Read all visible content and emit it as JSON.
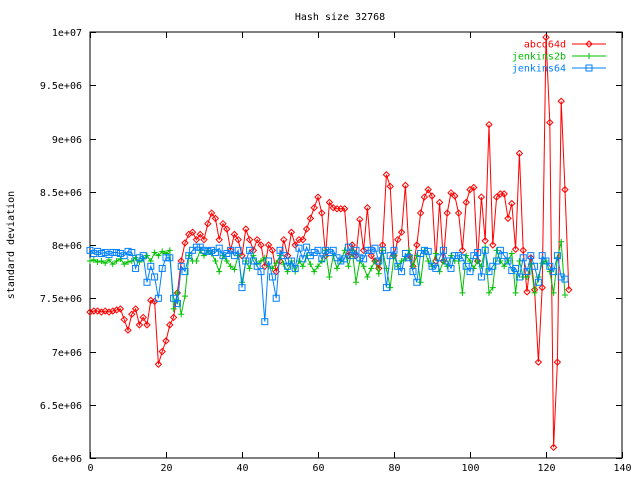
{
  "chart_data": {
    "type": "line",
    "title": "Hash size 32768",
    "xlabel": "",
    "ylabel": "standard deviation",
    "xlim": [
      0,
      140
    ],
    "ylim": [
      6000000,
      10000000
    ],
    "x_ticks": [
      0,
      20,
      40,
      60,
      80,
      100,
      120,
      140
    ],
    "x_tick_labels": [
      "0",
      "20",
      "40",
      "60",
      "80",
      "100",
      "120",
      "140"
    ],
    "y_ticks": [
      6000000,
      6500000,
      7000000,
      7500000,
      8000000,
      8500000,
      9000000,
      9500000,
      10000000
    ],
    "y_tick_labels": [
      "6e+06",
      "6.5e+06",
      "7e+06",
      "7.5e+06",
      "8e+06",
      "8.5e+06",
      "9e+06",
      "9.5e+06",
      "1e+07"
    ],
    "grid": false,
    "legend_position": "top-right",
    "series": [
      {
        "name": "abcd64d",
        "color": "#ff0000",
        "marker": "diamond",
        "values": [
          7370000,
          7380000,
          7380000,
          7370000,
          7380000,
          7370000,
          7380000,
          7390000,
          7400000,
          7300000,
          7200000,
          7350000,
          7400000,
          7250000,
          7320000,
          7250000,
          7480000,
          7470000,
          6880000,
          7000000,
          7100000,
          7250000,
          7320000,
          7550000,
          7850000,
          8020000,
          8100000,
          8120000,
          8050000,
          8100000,
          8050000,
          8200000,
          8300000,
          8250000,
          8050000,
          8200000,
          8150000,
          7950000,
          8100000,
          8050000,
          7900000,
          8150000,
          8050000,
          7950000,
          8050000,
          8000000,
          7800000,
          8000000,
          7950000,
          7750000,
          7850000,
          8050000,
          7900000,
          8120000,
          8000000,
          8050000,
          8050000,
          8150000,
          8250000,
          8350000,
          8450000,
          8300000,
          7900000,
          8400000,
          8350000,
          8340000,
          8340000,
          8340000,
          7900000,
          8000000,
          7900000,
          8240000,
          7950000,
          8350000,
          7900000,
          7850000,
          7780000,
          8000000,
          8660000,
          8550000,
          7900000,
          8050000,
          8120000,
          8560000,
          7900000,
          7800000,
          8000000,
          8300000,
          8450000,
          8520000,
          8460000,
          7850000,
          8400000,
          7850000,
          8300000,
          8490000,
          8460000,
          8300000,
          7950000,
          8400000,
          8520000,
          8540000,
          7850000,
          8450000,
          8040000,
          9130000,
          8000000,
          8450000,
          8480000,
          8480000,
          8250000,
          8390000,
          7960000,
          8860000,
          7950000,
          7560000,
          7880000,
          7580000,
          6900000,
          7600000,
          9950000,
          9150000,
          6100000,
          6900000,
          9350000,
          8520000,
          7580000
        ]
      },
      {
        "name": "jenkins2b",
        "color": "#00c000",
        "marker": "plus",
        "values": [
          7850000,
          7860000,
          7840000,
          7850000,
          7830000,
          7860000,
          7820000,
          7850000,
          7870000,
          7820000,
          7840000,
          7850000,
          7880000,
          7840000,
          7870000,
          7900000,
          7850000,
          7930000,
          7900000,
          7940000,
          7920000,
          7950000,
          7400000,
          7550000,
          7350000,
          7520000,
          7900000,
          7850000,
          7850000,
          7950000,
          7900000,
          7950000,
          7920000,
          7850000,
          7750000,
          7900000,
          7850000,
          7800000,
          7770000,
          7900000,
          7650000,
          7850000,
          7780000,
          7900000,
          7820000,
          7850000,
          7880000,
          7800000,
          7780000,
          7830000,
          7900000,
          7820000,
          7750000,
          7850000,
          7750000,
          7850000,
          7800000,
          7900000,
          7820000,
          7750000,
          7800000,
          7850000,
          7950000,
          7700000,
          7900000,
          7780000,
          7850000,
          7950000,
          7800000,
          7950000,
          7650000,
          7850000,
          7800000,
          7700000,
          7780000,
          7850000,
          7730000,
          7950000,
          7780000,
          7600000,
          7900000,
          7800000,
          7850000,
          7870000,
          7950000,
          7800000,
          7900000,
          7650000,
          7950000,
          7850000,
          7800000,
          7920000,
          7750000,
          7850000,
          7800000,
          7900000,
          7850000,
          7850000,
          7550000,
          7900000,
          7850000,
          7780000,
          7850000,
          7800000,
          7980000,
          7550000,
          7600000,
          7950000,
          7850000,
          7800000,
          7850000,
          7920000,
          7550000,
          7850000,
          7700000,
          7700000,
          7820000,
          7550000,
          7700000,
          7830000,
          7850000,
          7750000,
          7550000,
          7880000,
          8030000,
          7530000
        ]
      },
      {
        "name": "jenkins64",
        "color": "#0080ff",
        "marker": "square",
        "values": [
          7950000,
          7920000,
          7940000,
          7920000,
          7930000,
          7910000,
          7930000,
          7930000,
          7920000,
          7900000,
          7940000,
          7930000,
          7780000,
          7880000,
          7900000,
          7650000,
          7800000,
          7700000,
          7500000,
          7780000,
          7880000,
          7880000,
          7500000,
          7450000,
          7800000,
          7750000,
          7900000,
          7950000,
          7980000,
          7980000,
          7950000,
          7940000,
          7950000,
          7930000,
          7970000,
          7900000,
          7920000,
          7950000,
          7900000,
          7950000,
          7600000,
          7850000,
          7950000,
          7850000,
          7800000,
          7750000,
          7280000,
          7850000,
          7700000,
          7500000,
          7950000,
          7900000,
          7800000,
          7850000,
          7780000,
          7970000,
          7870000,
          7980000,
          7900000,
          7930000,
          7950000,
          7870000,
          7950000,
          7930000,
          7950000,
          7880000,
          7850000,
          7870000,
          7980000,
          7900000,
          7950000,
          7880000,
          7870000,
          7950000,
          7950000,
          7970000,
          7850000,
          7950000,
          7600000,
          7900000,
          7950000,
          7800000,
          7750000,
          7920000,
          7880000,
          7750000,
          7650000,
          7920000,
          7950000,
          7940000,
          7800000,
          7780000,
          7880000,
          7950000,
          7850000,
          7780000,
          7900000,
          7900000,
          7880000,
          7800000,
          7750000,
          7900000,
          7930000,
          7700000,
          7950000,
          7750000,
          7800000,
          7850000,
          7950000,
          7900000,
          7850000,
          7760000,
          7780000,
          7700000,
          7880000,
          7750000,
          7900000,
          7800000,
          7650000,
          7900000,
          7850000,
          7800000,
          7750000,
          7900000,
          7700000,
          7680000
        ]
      }
    ]
  }
}
